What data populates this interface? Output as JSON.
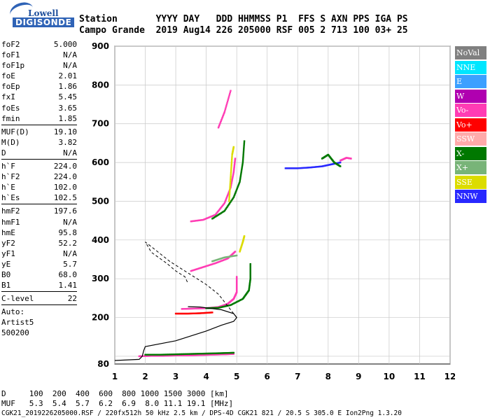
{
  "header": {
    "row1": "Station       YYYY DAY   DDD HHMMSS P1  FFS S AXN PPS IGA PS",
    "row2": "Campo Grande  2019 Aug14 226 205000 RSF 005 2 713 100 03+ 25"
  },
  "logo": {
    "top": "Lowell",
    "bottom": "DIGISONDE"
  },
  "params": [
    [
      {
        "k": "foF2",
        "v": "5.000"
      },
      {
        "k": "foF1",
        "v": "N/A"
      },
      {
        "k": "foF1p",
        "v": "N/A"
      },
      {
        "k": "foE",
        "v": "2.01"
      },
      {
        "k": "foEp",
        "v": "1.86"
      },
      {
        "k": "fxI",
        "v": "5.45"
      },
      {
        "k": "foEs",
        "v": "3.65"
      },
      {
        "k": "fmin",
        "v": "1.85"
      }
    ],
    [
      {
        "k": "MUF(D)",
        "v": "19.10"
      },
      {
        "k": "M(D)",
        "v": "3.82"
      },
      {
        "k": "D",
        "v": "N/A"
      }
    ],
    [
      {
        "k": "h`F",
        "v": "224.0"
      },
      {
        "k": "h`F2",
        "v": "224.0"
      },
      {
        "k": "h`E",
        "v": "102.0"
      },
      {
        "k": "h`Es",
        "v": "102.5"
      }
    ],
    [
      {
        "k": "hmF2",
        "v": "197.6"
      },
      {
        "k": "hmF1",
        "v": "N/A"
      },
      {
        "k": "hmE",
        "v": "95.8"
      },
      {
        "k": "yF2",
        "v": "52.2"
      },
      {
        "k": "yF1",
        "v": "N/A"
      },
      {
        "k": "yE",
        "v": "5.7"
      },
      {
        "k": "B0",
        "v": "68.0"
      },
      {
        "k": "B1",
        "v": "1.41"
      }
    ],
    [
      {
        "k": "C-level",
        "v": "22"
      }
    ]
  ],
  "notes": {
    "auto": "Auto:",
    "artist": "Artist5",
    "version": "500200"
  },
  "footer": {
    "line1": "D     100  200  400  600  800 1000 1500 3000 [km]",
    "line2": "MUF   5.3  5.4  5.7  6.2  6.9  8.0 11.1 19.1 [MHz]",
    "line3": "CGK21_2019226205000.RSF / 220fx512h 50 kHz 2.5 km / DPS-4D CGK21 821 / 20.5 S 305.0 E Ion2Png 1.3.20"
  },
  "legend": [
    {
      "label": "NoVal",
      "color": "#808080"
    },
    {
      "label": "NNE",
      "color": "#00e6ff"
    },
    {
      "label": "E",
      "color": "#3ca0ff"
    },
    {
      "label": "W",
      "color": "#b000b0"
    },
    {
      "label": "Vo-",
      "color": "#ff3cb4"
    },
    {
      "label": "Vo+",
      "color": "#ff0000"
    },
    {
      "label": "SSW",
      "color": "#ffaaaa"
    },
    {
      "label": "X-",
      "color": "#007800"
    },
    {
      "label": "X+",
      "color": "#78b478"
    },
    {
      "label": "SSE",
      "color": "#dcdc00"
    },
    {
      "label": "NNW",
      "color": "#2828ff"
    }
  ],
  "chart_data": {
    "type": "scatter",
    "xlim": [
      1,
      12
    ],
    "ylim": [
      80,
      900
    ],
    "xticks": [
      "1",
      "2",
      "3",
      "4",
      "5",
      "6",
      "7",
      "8",
      "9",
      "10",
      "11",
      "12"
    ],
    "yticks": [
      "100",
      "200",
      "300",
      "400",
      "500",
      "600",
      "700",
      "800",
      "900"
    ],
    "yticklabels_shown": [
      "80",
      "200",
      "300",
      "400",
      "500",
      "600",
      "700",
      "800",
      "900"
    ],
    "grid": true,
    "traces": [
      {
        "name": "E-layer",
        "color": "#ff3cb4",
        "points": [
          [
            1.8,
            100
          ],
          [
            2.2,
            101
          ],
          [
            2.6,
            101
          ],
          [
            3.0,
            102
          ],
          [
            3.4,
            102
          ],
          [
            3.8,
            103
          ],
          [
            4.2,
            104
          ],
          [
            4.6,
            105
          ],
          [
            4.9,
            106
          ]
        ]
      },
      {
        "name": "E-layer-x",
        "color": "#007800",
        "points": [
          [
            2.0,
            104
          ],
          [
            2.5,
            104
          ],
          [
            3.0,
            105
          ],
          [
            3.5,
            106
          ],
          [
            4.0,
            107
          ],
          [
            4.5,
            108
          ],
          [
            4.9,
            109
          ]
        ]
      },
      {
        "name": "F1-o",
        "color": "#ff3cb4",
        "points": [
          [
            3.2,
            222
          ],
          [
            3.6,
            223
          ],
          [
            4.0,
            224
          ],
          [
            4.4,
            227
          ],
          [
            4.7,
            235
          ],
          [
            4.9,
            248
          ],
          [
            5.0,
            265
          ],
          [
            5.0,
            285
          ],
          [
            5.0,
            305
          ]
        ]
      },
      {
        "name": "F1-x",
        "color": "#007800",
        "points": [
          [
            4.0,
            224
          ],
          [
            4.4,
            225
          ],
          [
            4.8,
            232
          ],
          [
            5.2,
            248
          ],
          [
            5.4,
            270
          ],
          [
            5.45,
            300
          ],
          [
            5.45,
            320
          ],
          [
            5.45,
            338
          ]
        ]
      },
      {
        "name": "F1-red",
        "color": "#ff0000",
        "points": [
          [
            3.0,
            210
          ],
          [
            3.4,
            210
          ],
          [
            3.8,
            211
          ],
          [
            4.2,
            213
          ]
        ]
      },
      {
        "name": "F2-o",
        "color": "#ff3cb4",
        "points": [
          [
            3.5,
            448
          ],
          [
            3.9,
            452
          ],
          [
            4.3,
            465
          ],
          [
            4.6,
            495
          ],
          [
            4.8,
            535
          ],
          [
            4.9,
            575
          ],
          [
            4.95,
            610
          ]
        ]
      },
      {
        "name": "F2-x",
        "color": "#007800",
        "points": [
          [
            4.2,
            455
          ],
          [
            4.6,
            475
          ],
          [
            4.9,
            510
          ],
          [
            5.1,
            550
          ],
          [
            5.2,
            600
          ],
          [
            5.25,
            655
          ]
        ]
      },
      {
        "name": "F2-sse",
        "color": "#dcdc00",
        "points": [
          [
            4.75,
            500
          ],
          [
            4.8,
            560
          ],
          [
            4.85,
            620
          ],
          [
            4.9,
            640
          ]
        ]
      },
      {
        "name": "F2-high",
        "color": "#ff3cb4",
        "points": [
          [
            4.4,
            690
          ],
          [
            4.6,
            730
          ],
          [
            4.8,
            785
          ]
        ]
      },
      {
        "name": "F-mid-o",
        "color": "#ff3cb4",
        "points": [
          [
            3.5,
            320
          ],
          [
            3.9,
            330
          ],
          [
            4.3,
            340
          ],
          [
            4.7,
            352
          ],
          [
            4.95,
            370
          ]
        ]
      },
      {
        "name": "F-mid-x",
        "color": "#78b478",
        "points": [
          [
            4.2,
            345
          ],
          [
            4.6,
            355
          ],
          [
            5.0,
            360
          ]
        ]
      },
      {
        "name": "F-mid-sse",
        "color": "#dcdc00",
        "points": [
          [
            5.1,
            370
          ],
          [
            5.2,
            395
          ],
          [
            5.25,
            410
          ]
        ]
      },
      {
        "name": "oblique",
        "color": "#2828ff",
        "points": [
          [
            6.6,
            585
          ],
          [
            7.0,
            585
          ],
          [
            7.4,
            587
          ],
          [
            7.8,
            590
          ],
          [
            8.1,
            595
          ],
          [
            8.4,
            600
          ]
        ]
      },
      {
        "name": "oblique-x",
        "color": "#007800",
        "points": [
          [
            7.8,
            610
          ],
          [
            8.0,
            620
          ],
          [
            8.2,
            600
          ],
          [
            8.4,
            590
          ]
        ]
      },
      {
        "name": "oblique-o",
        "color": "#ff3cb4",
        "points": [
          [
            8.4,
            605
          ],
          [
            8.6,
            612
          ],
          [
            8.75,
            610
          ]
        ]
      }
    ],
    "profile_solid": [
      [
        1.0,
        89
      ],
      [
        1.8,
        92
      ],
      [
        1.9,
        100
      ],
      [
        1.95,
        115
      ],
      [
        2.0,
        125
      ],
      [
        3.0,
        140
      ],
      [
        4.0,
        165
      ],
      [
        4.5,
        180
      ],
      [
        4.9,
        190
      ],
      [
        5.0,
        200
      ],
      [
        4.9,
        210
      ],
      [
        4.5,
        220
      ],
      [
        3.8,
        227
      ],
      [
        3.4,
        228
      ]
    ],
    "profile_dashed": [
      [
        5.0,
        200
      ],
      [
        4.7,
        230
      ],
      [
        4.4,
        260
      ],
      [
        4.0,
        285
      ],
      [
        3.6,
        305
      ],
      [
        3.2,
        325
      ],
      [
        2.8,
        345
      ],
      [
        2.4,
        370
      ],
      [
        2.0,
        395
      ],
      [
        2.2,
        368
      ],
      [
        2.7,
        340
      ],
      [
        3.0,
        320
      ],
      [
        3.3,
        305
      ],
      [
        3.4,
        288
      ]
    ]
  }
}
